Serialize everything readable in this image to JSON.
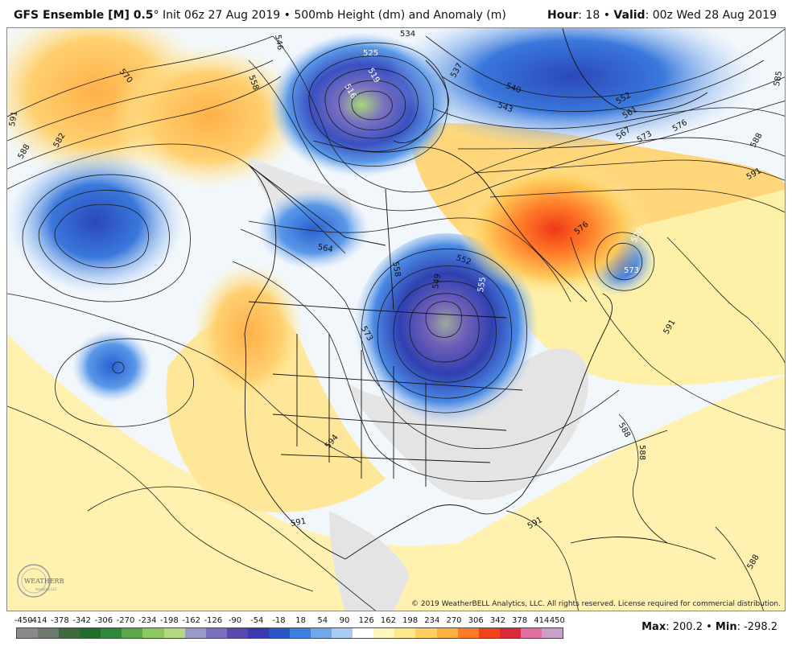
{
  "header": {
    "model": "GFS Ensemble [M] 0.5",
    "degree": "°",
    "init": "Init 06z 27 Aug 2019",
    "bullet": "•",
    "field": "500mb Height (dm) and Anomaly (m)",
    "hour_label": "Hour",
    "hour_value": ": 18",
    "valid_label": "Valid",
    "valid_value": ": 00z Wed 28 Aug 2019"
  },
  "colorbar": {
    "labels": [
      "-450",
      "-414",
      "-378",
      "-342",
      "-306",
      "-270",
      "-234",
      "-198",
      "-162",
      "-126",
      "-90",
      "-54",
      "-18",
      "18",
      "54",
      "90",
      "126",
      "162",
      "198",
      "234",
      "270",
      "306",
      "342",
      "378",
      "414",
      "450"
    ],
    "colors": [
      "#8a8a8a",
      "#6e7a6e",
      "#3d6b3d",
      "#1f6e2a",
      "#2e8a3a",
      "#5aa84a",
      "#8cc860",
      "#b4d880",
      "#9a9ac8",
      "#7a70c0",
      "#5a48b0",
      "#3a3ab0",
      "#2a55c8",
      "#3a80e0",
      "#70a8ec",
      "#a8ccf4",
      "#ffffff",
      "#fff6c0",
      "#ffe88a",
      "#ffd060",
      "#ffae40",
      "#ff7a28",
      "#f04418",
      "#d82a3a",
      "#e070a0",
      "#c8a0c8"
    ],
    "max_label": "Max",
    "max_value": ": 200.2",
    "min_label": "Min",
    "min_value": ": -298.2",
    "bullet": "•"
  },
  "contour_labels": [
    {
      "id": "c534",
      "text": "534"
    },
    {
      "id": "c525",
      "text": "525"
    },
    {
      "id": "c519",
      "text": "519"
    },
    {
      "id": "c516",
      "text": "516"
    },
    {
      "id": "c537",
      "text": "537"
    },
    {
      "id": "c540",
      "text": "540"
    },
    {
      "id": "c543",
      "text": "543"
    },
    {
      "id": "c546",
      "text": "546"
    },
    {
      "id": "c552a",
      "text": "552"
    },
    {
      "id": "c561",
      "text": "561"
    },
    {
      "id": "c567",
      "text": "567"
    },
    {
      "id": "c573a",
      "text": "573"
    },
    {
      "id": "c576a",
      "text": "576"
    },
    {
      "id": "c585",
      "text": "585"
    },
    {
      "id": "c588a",
      "text": "588"
    },
    {
      "id": "c591a",
      "text": "591"
    },
    {
      "id": "c570",
      "text": "570"
    },
    {
      "id": "c558a",
      "text": "558"
    },
    {
      "id": "c591b",
      "text": "591"
    },
    {
      "id": "c588b",
      "text": "588"
    },
    {
      "id": "c582",
      "text": "582"
    },
    {
      "id": "c564",
      "text": "564"
    },
    {
      "id": "c558b",
      "text": "558"
    },
    {
      "id": "c552b",
      "text": "552"
    },
    {
      "id": "c549",
      "text": "549"
    },
    {
      "id": "c555",
      "text": "555"
    },
    {
      "id": "c576b",
      "text": "576"
    },
    {
      "id": "c570b",
      "text": "570"
    },
    {
      "id": "c573b",
      "text": "573"
    },
    {
      "id": "c591c",
      "text": "591"
    },
    {
      "id": "c588c",
      "text": "588"
    },
    {
      "id": "c588d",
      "text": "588"
    },
    {
      "id": "c591d",
      "text": "591"
    },
    {
      "id": "c591e",
      "text": "591"
    },
    {
      "id": "c594",
      "text": "594"
    },
    {
      "id": "c588e",
      "text": "588"
    },
    {
      "id": "c573c",
      "text": "573"
    }
  ],
  "logo": {
    "text": "WEATHERBELL",
    "sub": "Analytics LLC"
  },
  "copyright": "© 2019 WeatherBELL Analytics, LLC. All rights reserved. License required for commercial distribution."
}
